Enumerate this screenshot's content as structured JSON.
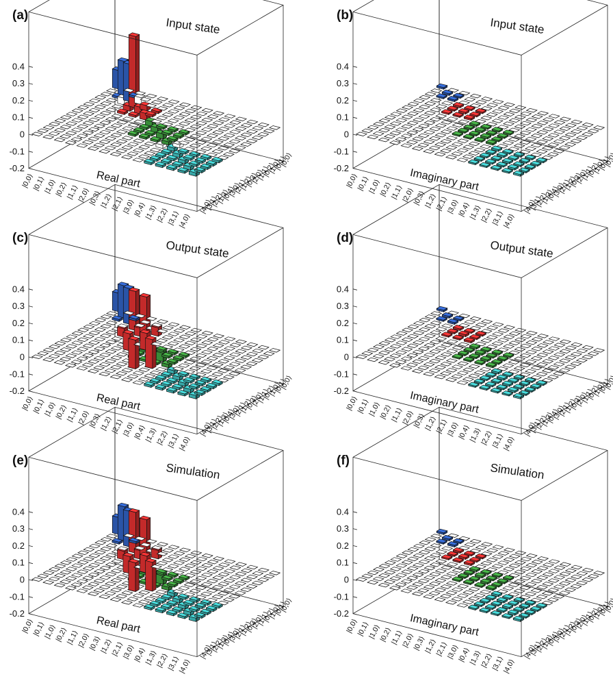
{
  "figure": {
    "basis_labels": [
      "|0,0⟩",
      "|0,1⟩",
      "|1,0⟩",
      "|0,2⟩",
      "|1,1⟩",
      "|2,0⟩",
      "|0,3⟩",
      "|1,2⟩",
      "|2,1⟩",
      "|3,0⟩",
      "|0,4⟩",
      "|1,3⟩",
      "|2,2⟩",
      "|3,1⟩",
      "|4,0⟩"
    ],
    "z_ticks": [
      "0.4",
      "0.3",
      "0.2",
      "0.1",
      "0",
      "-0.1",
      "-0.2"
    ],
    "colors": {
      "photon_1": "#3366cc",
      "photon_2": "#ee3333",
      "photon_3": "#44aa44",
      "photon_4": "#44cccc",
      "zero": "#ffffff",
      "frame": "#222222"
    }
  },
  "panels": [
    {
      "letter": "(a)",
      "title": "Input state",
      "part": "Real part"
    },
    {
      "letter": "(b)",
      "title": "Input state",
      "part": "Imaginary part"
    },
    {
      "letter": "(c)",
      "title": "Output state",
      "part": "Real part"
    },
    {
      "letter": "(d)",
      "title": "Output state",
      "part": "Imaginary part"
    },
    {
      "letter": "(e)",
      "title": "Simulation",
      "part": "Real part"
    },
    {
      "letter": "(f)",
      "title": "Simulation",
      "part": "Imaginary part"
    }
  ],
  "chart_data": [
    {
      "type": "bar3d",
      "title": "Input state",
      "zlabel": "Real part",
      "zlim": [
        -0.2,
        0.4
      ],
      "diagonal": [
        0.11,
        0.2,
        0.22,
        0.42,
        0.04,
        0.04,
        0.03,
        0.03,
        0.03,
        0.02,
        0.02,
        0.02,
        0.02,
        0.02,
        0.02
      ],
      "off_diagonal": [
        {
          "row": 2,
          "col": 3,
          "value": 0.04
        },
        {
          "row": 3,
          "col": 4,
          "value": 0.03
        },
        {
          "row": 9,
          "col": 10,
          "value": 0.02
        }
      ]
    },
    {
      "type": "bar3d",
      "title": "Input state",
      "zlabel": "Imaginary part",
      "zlim": [
        -0.2,
        0.4
      ],
      "diagonal": [
        0.01,
        0.01,
        0.01,
        0.01,
        0.01,
        0.01,
        0.01,
        0.01,
        0.01,
        0.01,
        0.01,
        0.01,
        0.01,
        0.01,
        0.01
      ],
      "off_diagonal": []
    },
    {
      "type": "bar3d",
      "title": "Output state",
      "zlabel": "Real part",
      "zlim": [
        -0.2,
        0.4
      ],
      "diagonal": [
        0.11,
        0.19,
        0.21,
        0.23,
        0.05,
        0.27,
        0.04,
        0.03,
        0.05,
        0.02,
        0.02,
        0.02,
        0.02,
        0.02,
        0.02
      ],
      "off_diagonal": [
        {
          "row": 3,
          "col": 4,
          "value": -0.1
        },
        {
          "row": 4,
          "col": 5,
          "value": -0.17
        },
        {
          "row": 3,
          "col": 5,
          "value": 0.05
        }
      ]
    },
    {
      "type": "bar3d",
      "title": "Output state",
      "zlabel": "Imaginary part",
      "zlim": [
        -0.2,
        0.4
      ],
      "diagonal": [
        0.01,
        0.01,
        0.01,
        0.01,
        0.02,
        0.01,
        0.01,
        0.01,
        0.01,
        0.01,
        0.01,
        0.01,
        0.01,
        0.01,
        0.01
      ],
      "off_diagonal": []
    },
    {
      "type": "bar3d",
      "title": "Simulation",
      "zlabel": "Real part",
      "zlim": [
        -0.2,
        0.4
      ],
      "diagonal": [
        0.1,
        0.2,
        0.21,
        0.24,
        0.05,
        0.27,
        0.04,
        0.03,
        0.05,
        0.02,
        0.02,
        0.02,
        0.02,
        0.02,
        0.02
      ],
      "off_diagonal": [
        {
          "row": 3,
          "col": 4,
          "value": -0.1
        },
        {
          "row": 4,
          "col": 5,
          "value": -0.17
        },
        {
          "row": 3,
          "col": 5,
          "value": 0.05
        }
      ]
    },
    {
      "type": "bar3d",
      "title": "Simulation",
      "zlabel": "Imaginary part",
      "zlim": [
        -0.2,
        0.4
      ],
      "diagonal": [
        0.01,
        0.01,
        0.01,
        0.01,
        0.01,
        0.01,
        0.01,
        0.01,
        0.01,
        0.01,
        0.01,
        0.01,
        0.01,
        0.01,
        0.01
      ],
      "off_diagonal": []
    }
  ]
}
